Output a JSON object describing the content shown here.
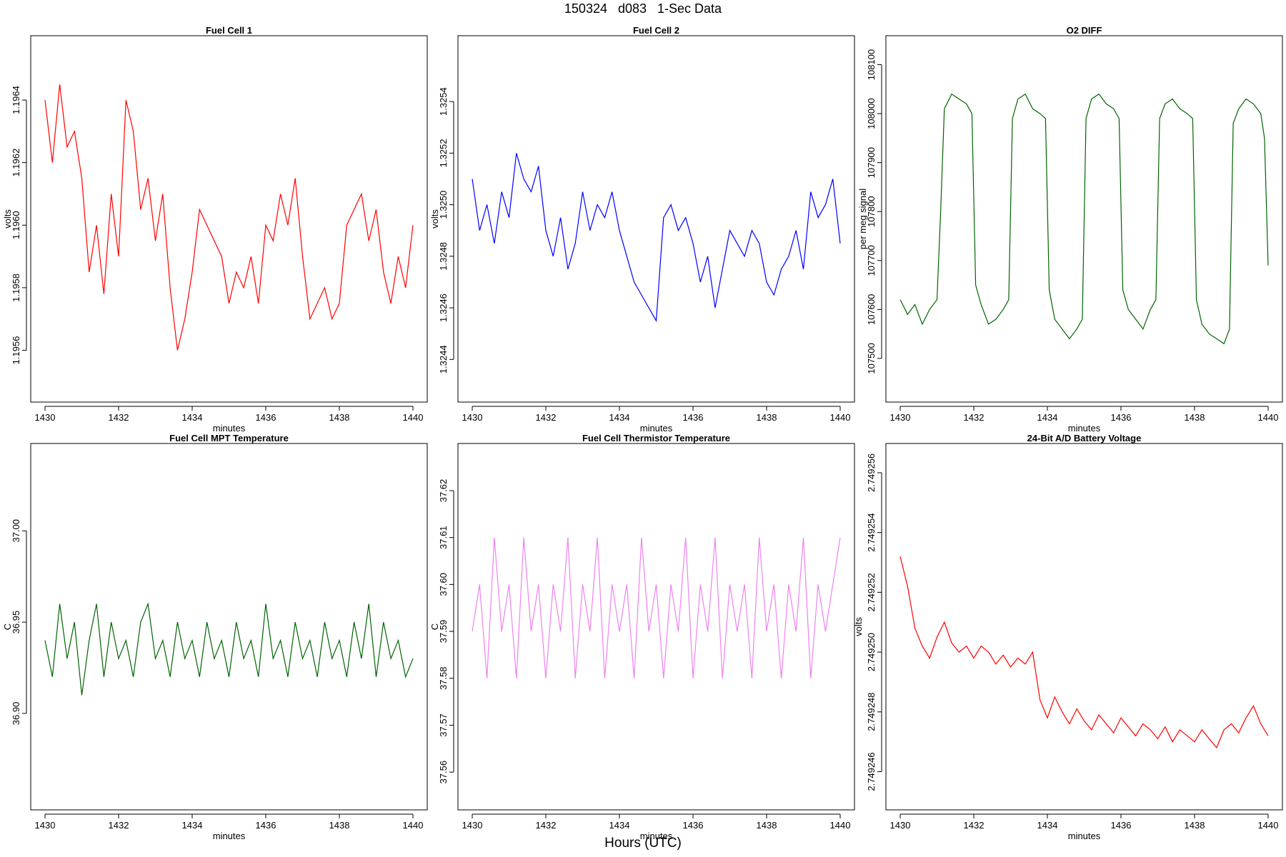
{
  "page": {
    "title": "150324   d083   1-Sec Data",
    "x_main_label": "Hours (UTC)"
  },
  "chart_data": [
    {
      "id": "fc1",
      "type": "line",
      "title": "Fuel Cell 1",
      "xlabel": "minutes",
      "ylabel": "volts",
      "color": "#ff0000",
      "xlim": [
        1430,
        1440
      ],
      "xticks": [
        "1430",
        "1432",
        "1434",
        "1436",
        "1438",
        "1440"
      ],
      "ylim": [
        1.19548,
        1.19656
      ],
      "yticks": [
        "1.1956",
        "1.1958",
        "1.1960",
        "1.1962",
        "1.1964"
      ],
      "x": [
        1430.0,
        1430.2,
        1430.4,
        1430.6,
        1430.8,
        1431.0,
        1431.2,
        1431.4,
        1431.6,
        1431.8,
        1432.0,
        1432.2,
        1432.4,
        1432.6,
        1432.8,
        1433.0,
        1433.2,
        1433.4,
        1433.6,
        1433.8,
        1434.0,
        1434.2,
        1434.4,
        1434.6,
        1434.8,
        1435.0,
        1435.2,
        1435.4,
        1435.6,
        1435.8,
        1436.0,
        1436.2,
        1436.4,
        1436.6,
        1436.8,
        1437.0,
        1437.2,
        1437.4,
        1437.6,
        1437.8,
        1438.0,
        1438.2,
        1438.4,
        1438.6,
        1438.8,
        1439.0,
        1439.2,
        1439.4,
        1439.6,
        1439.8,
        1440.0
      ],
      "values": [
        1.1964,
        1.1962,
        1.19645,
        1.19625,
        1.1963,
        1.19615,
        1.19585,
        1.196,
        1.19578,
        1.1961,
        1.1959,
        1.1964,
        1.1963,
        1.19605,
        1.19615,
        1.19595,
        1.1961,
        1.1958,
        1.1956,
        1.1957,
        1.19585,
        1.19605,
        1.196,
        1.19595,
        1.1959,
        1.19575,
        1.19585,
        1.1958,
        1.1959,
        1.19575,
        1.196,
        1.19595,
        1.1961,
        1.196,
        1.19615,
        1.1959,
        1.1957,
        1.19575,
        1.1958,
        1.1957,
        1.19575,
        1.196,
        1.19605,
        1.1961,
        1.19595,
        1.19605,
        1.19585,
        1.19575,
        1.1959,
        1.1958,
        1.196
      ]
    },
    {
      "id": "fc2",
      "type": "line",
      "title": "Fuel Cell 2",
      "xlabel": "minutes",
      "ylabel": "volts",
      "color": "#0000ff",
      "xlim": [
        1430,
        1440
      ],
      "xticks": [
        "1430",
        "1432",
        "1434",
        "1436",
        "1438",
        "1440"
      ],
      "ylim": [
        1.32429,
        1.3256
      ],
      "yticks": [
        "1.3244",
        "1.3246",
        "1.3248",
        "1.3250",
        "1.3252",
        "1.3254"
      ],
      "x": [
        1430.0,
        1430.2,
        1430.4,
        1430.6,
        1430.8,
        1431.0,
        1431.2,
        1431.4,
        1431.6,
        1431.8,
        1432.0,
        1432.2,
        1432.4,
        1432.6,
        1432.8,
        1433.0,
        1433.2,
        1433.4,
        1433.6,
        1433.8,
        1434.0,
        1434.2,
        1434.4,
        1434.6,
        1434.8,
        1435.0,
        1435.2,
        1435.4,
        1435.6,
        1435.8,
        1436.0,
        1436.2,
        1436.4,
        1436.6,
        1436.8,
        1437.0,
        1437.2,
        1437.4,
        1437.6,
        1437.8,
        1438.0,
        1438.2,
        1438.4,
        1438.6,
        1438.8,
        1439.0,
        1439.2,
        1439.4,
        1439.6,
        1439.8,
        1440.0
      ],
      "values": [
        1.3251,
        1.3249,
        1.325,
        1.32485,
        1.32505,
        1.32495,
        1.3252,
        1.3251,
        1.32505,
        1.32515,
        1.3249,
        1.3248,
        1.32495,
        1.32475,
        1.32485,
        1.32505,
        1.3249,
        1.325,
        1.32495,
        1.32505,
        1.3249,
        1.3248,
        1.3247,
        1.32465,
        1.3246,
        1.32455,
        1.32495,
        1.325,
        1.3249,
        1.32495,
        1.32485,
        1.3247,
        1.3248,
        1.3246,
        1.32475,
        1.3249,
        1.32485,
        1.3248,
        1.3249,
        1.32485,
        1.3247,
        1.32465,
        1.32475,
        1.3248,
        1.3249,
        1.32475,
        1.32505,
        1.32495,
        1.325,
        1.3251,
        1.32485
      ]
    },
    {
      "id": "o2",
      "type": "line",
      "title": "O2 DIFF",
      "xlabel": "minutes",
      "ylabel": "per meg signal",
      "color": "#006400",
      "xlim": [
        1430,
        1440
      ],
      "xticks": [
        "1430",
        "1432",
        "1434",
        "1436",
        "1438",
        "1440"
      ],
      "ylim": [
        107440,
        108130
      ],
      "yticks": [
        "107500",
        "107600",
        "107700",
        "107800",
        "107900",
        "108000",
        "108100"
      ],
      "x": [
        1430.0,
        1430.2,
        1430.4,
        1430.6,
        1430.8,
        1431.0,
        1431.1,
        1431.2,
        1431.4,
        1431.6,
        1431.8,
        1431.95,
        1432.05,
        1432.2,
        1432.4,
        1432.6,
        1432.8,
        1432.95,
        1433.05,
        1433.2,
        1433.4,
        1433.6,
        1433.8,
        1433.95,
        1434.05,
        1434.2,
        1434.4,
        1434.6,
        1434.8,
        1434.95,
        1435.05,
        1435.2,
        1435.4,
        1435.6,
        1435.8,
        1435.95,
        1436.05,
        1436.2,
        1436.4,
        1436.6,
        1436.8,
        1436.95,
        1437.05,
        1437.2,
        1437.4,
        1437.6,
        1437.8,
        1437.95,
        1438.05,
        1438.2,
        1438.4,
        1438.6,
        1438.8,
        1438.95,
        1439.05,
        1439.2,
        1439.4,
        1439.6,
        1439.8,
        1439.9,
        1440.0
      ],
      "values": [
        107620,
        107590,
        107610,
        107570,
        107600,
        107620,
        107800,
        108010,
        108040,
        108030,
        108020,
        108000,
        107650,
        107610,
        107570,
        107580,
        107600,
        107620,
        107990,
        108030,
        108040,
        108010,
        108000,
        107990,
        107640,
        107580,
        107560,
        107540,
        107560,
        107580,
        107990,
        108030,
        108040,
        108020,
        108010,
        107990,
        107640,
        107600,
        107580,
        107560,
        107600,
        107620,
        107990,
        108020,
        108030,
        108010,
        108000,
        107990,
        107620,
        107570,
        107550,
        107540,
        107530,
        107560,
        107980,
        108010,
        108030,
        108020,
        108000,
        107950,
        107690
      ]
    },
    {
      "id": "mpt",
      "type": "line",
      "title": "Fuel Cell MPT Temperature",
      "xlabel": "minutes",
      "ylabel": "C",
      "color": "#006400",
      "xlim": [
        1430,
        1440
      ],
      "xticks": [
        "1430",
        "1432",
        "1434",
        "1436",
        "1438",
        "1440"
      ],
      "ylim": [
        36.855,
        37.04
      ],
      "yticks": [
        "36.90",
        "36.95",
        "37.00"
      ],
      "x": [
        1430.0,
        1430.2,
        1430.4,
        1430.6,
        1430.8,
        1431.0,
        1431.2,
        1431.4,
        1431.6,
        1431.8,
        1432.0,
        1432.2,
        1432.4,
        1432.6,
        1432.8,
        1433.0,
        1433.2,
        1433.4,
        1433.6,
        1433.8,
        1434.0,
        1434.2,
        1434.4,
        1434.6,
        1434.8,
        1435.0,
        1435.2,
        1435.4,
        1435.6,
        1435.8,
        1436.0,
        1436.2,
        1436.4,
        1436.6,
        1436.8,
        1437.0,
        1437.2,
        1437.4,
        1437.6,
        1437.8,
        1438.0,
        1438.2,
        1438.4,
        1438.6,
        1438.8,
        1439.0,
        1439.2,
        1439.4,
        1439.6,
        1439.8,
        1440.0
      ],
      "values": [
        36.94,
        36.92,
        36.96,
        36.93,
        36.95,
        36.91,
        36.94,
        36.96,
        36.92,
        36.95,
        36.93,
        36.94,
        36.92,
        36.95,
        36.96,
        36.93,
        36.94,
        36.92,
        36.95,
        36.93,
        36.94,
        36.92,
        36.95,
        36.93,
        36.94,
        36.92,
        36.95,
        36.93,
        36.94,
        36.92,
        36.96,
        36.93,
        36.94,
        36.92,
        36.95,
        36.93,
        36.94,
        36.92,
        36.95,
        36.93,
        36.94,
        36.92,
        36.95,
        36.93,
        36.96,
        36.92,
        36.95,
        36.93,
        36.94,
        36.92,
        36.93
      ]
    },
    {
      "id": "therm",
      "type": "line",
      "title": "Fuel Cell Thermistor Temperature",
      "xlabel": "minutes",
      "ylabel": "C",
      "color": "#ee82ee",
      "xlim": [
        1430,
        1440
      ],
      "xticks": [
        "1430",
        "1432",
        "1434",
        "1436",
        "1438",
        "1440"
      ],
      "ylim": [
        37.555,
        37.627
      ],
      "yticks": [
        "37.56",
        "37.57",
        "37.58",
        "37.59",
        "37.60",
        "37.61",
        "37.62"
      ],
      "x": [
        1430.0,
        1430.2,
        1430.4,
        1430.6,
        1430.8,
        1431.0,
        1431.2,
        1431.4,
        1431.6,
        1431.8,
        1432.0,
        1432.2,
        1432.4,
        1432.6,
        1432.8,
        1433.0,
        1433.2,
        1433.4,
        1433.6,
        1433.8,
        1434.0,
        1434.2,
        1434.4,
        1434.6,
        1434.8,
        1435.0,
        1435.2,
        1435.4,
        1435.6,
        1435.8,
        1436.0,
        1436.2,
        1436.4,
        1436.6,
        1436.8,
        1437.0,
        1437.2,
        1437.4,
        1437.6,
        1437.8,
        1438.0,
        1438.2,
        1438.4,
        1438.6,
        1438.8,
        1439.0,
        1439.2,
        1439.4,
        1439.6,
        1439.8,
        1440.0
      ],
      "values": [
        37.59,
        37.6,
        37.58,
        37.61,
        37.59,
        37.6,
        37.58,
        37.61,
        37.59,
        37.6,
        37.58,
        37.6,
        37.59,
        37.61,
        37.58,
        37.6,
        37.59,
        37.61,
        37.58,
        37.6,
        37.59,
        37.6,
        37.58,
        37.61,
        37.59,
        37.6,
        37.58,
        37.6,
        37.59,
        37.61,
        37.58,
        37.6,
        37.59,
        37.61,
        37.58,
        37.6,
        37.59,
        37.6,
        37.58,
        37.61,
        37.59,
        37.6,
        37.58,
        37.6,
        37.59,
        37.61,
        37.58,
        37.6,
        37.59,
        37.6,
        37.61
      ]
    },
    {
      "id": "batt",
      "type": "line",
      "title": "24-Bit A/D Battery Voltage",
      "xlabel": "minutes",
      "ylabel": "volts",
      "color": "#ff0000",
      "xlim": [
        1430,
        1440
      ],
      "xticks": [
        "1430",
        "1432",
        "1434",
        "1436",
        "1438",
        "1440"
      ],
      "ylim": [
        2.7492452,
        2.7492565
      ],
      "yticks": [
        "2.749246",
        "2.749248",
        "2.749250",
        "2.749252",
        "2.749254",
        "2.749256"
      ],
      "x": [
        1430.0,
        1430.2,
        1430.4,
        1430.6,
        1430.8,
        1431.0,
        1431.2,
        1431.4,
        1431.6,
        1431.8,
        1432.0,
        1432.2,
        1432.4,
        1432.6,
        1432.8,
        1433.0,
        1433.2,
        1433.4,
        1433.6,
        1433.8,
        1434.0,
        1434.2,
        1434.4,
        1434.6,
        1434.8,
        1435.0,
        1435.2,
        1435.4,
        1435.6,
        1435.8,
        1436.0,
        1436.2,
        1436.4,
        1436.6,
        1436.8,
        1437.0,
        1437.2,
        1437.4,
        1437.6,
        1437.8,
        1438.0,
        1438.2,
        1438.4,
        1438.6,
        1438.8,
        1439.0,
        1439.2,
        1439.4,
        1439.6,
        1439.8,
        1440.0
      ],
      "values": [
        2.7492532,
        2.7492522,
        2.7492508,
        2.7492502,
        2.7492498,
        2.7492505,
        2.749251,
        2.7492503,
        2.74925,
        2.7492502,
        2.7492498,
        2.7492502,
        2.74925,
        2.7492496,
        2.7492499,
        2.7492495,
        2.7492498,
        2.7492496,
        2.74925,
        2.7492484,
        2.7492478,
        2.7492485,
        2.749248,
        2.7492476,
        2.7492481,
        2.7492477,
        2.7492474,
        2.7492479,
        2.7492476,
        2.7492473,
        2.7492478,
        2.7492475,
        2.7492472,
        2.7492476,
        2.7492474,
        2.7492471,
        2.7492475,
        2.749247,
        2.7492474,
        2.7492472,
        2.749247,
        2.7492474,
        2.7492471,
        2.7492468,
        2.7492474,
        2.7492476,
        2.7492473,
        2.7492478,
        2.7492482,
        2.7492476,
        2.7492472
      ]
    }
  ]
}
